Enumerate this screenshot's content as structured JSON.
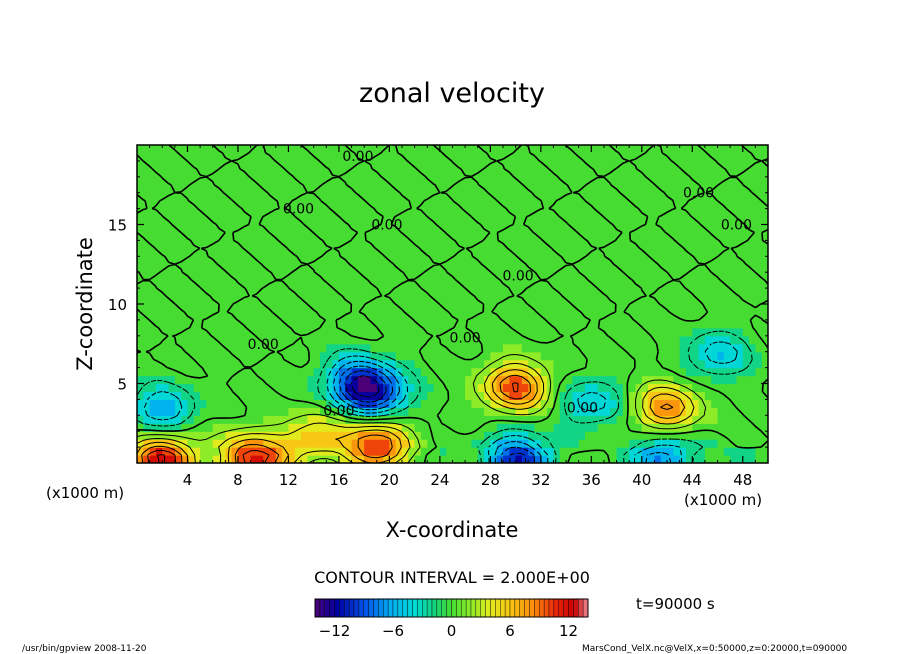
{
  "chart_data": {
    "type": "heatmap",
    "title": "zonal velocity",
    "xlabel": "X-coordinate",
    "ylabel": "Z-coordinate",
    "x_unit_label": "(x1000 m)",
    "x_unit_label_left": "(x1000 m)",
    "x_ticks": [
      4,
      8,
      12,
      16,
      20,
      24,
      28,
      32,
      36,
      40,
      44,
      48
    ],
    "y_ticks": [
      5,
      10,
      15
    ],
    "xlim": [
      0,
      50
    ],
    "ylim": [
      0,
      20
    ],
    "contour_interval_label": "CONTOUR INTERVAL = 2.000E+00",
    "contour_value_label": "0.00",
    "time_label": "t=90000 s",
    "colorbar": {
      "min": -14,
      "max": 14,
      "ticks": [
        -12,
        -6,
        0,
        6,
        12
      ]
    },
    "features": [
      {
        "x": 17.5,
        "z": 5.2,
        "value": -9.0
      },
      {
        "x": 19.0,
        "z": 4.3,
        "value": -8.0
      },
      {
        "x": 30.0,
        "z": 4.8,
        "value": 10.0
      },
      {
        "x": 19.0,
        "z": 1.2,
        "value": 10.0
      },
      {
        "x": 42.0,
        "z": 3.5,
        "value": 8.0
      },
      {
        "x": 2.0,
        "z": 0.3,
        "value": 11.0
      },
      {
        "x": 9.0,
        "z": 0.3,
        "value": 11.0
      },
      {
        "x": 30.0,
        "z": 0.3,
        "value": -10.0
      },
      {
        "x": 42.0,
        "z": 0.3,
        "value": -7.0
      },
      {
        "x": 2.0,
        "z": 3.4,
        "value": -6.0
      },
      {
        "x": 46.0,
        "z": 6.8,
        "value": -5.0
      },
      {
        "x": 36.0,
        "z": 3.8,
        "value": -5.0
      },
      {
        "x": 14.0,
        "z": 1.5,
        "value": 6.0
      }
    ],
    "contour_label_positions": [
      {
        "x": 17.5,
        "z": 19.3
      },
      {
        "x": 44.5,
        "z": 17.0
      },
      {
        "x": 12.8,
        "z": 16.0
      },
      {
        "x": 19.8,
        "z": 15.0
      },
      {
        "x": 47.5,
        "z": 15.0
      },
      {
        "x": 30.2,
        "z": 11.8
      },
      {
        "x": 10.0,
        "z": 7.5
      },
      {
        "x": 26.0,
        "z": 7.9
      },
      {
        "x": 16.0,
        "z": 3.3
      },
      {
        "x": 35.3,
        "z": 3.5
      }
    ]
  },
  "footer": {
    "left": "/usr/bin/gpview   2008-11-20",
    "right": "MarsCond_VelX.nc@VelX,x=0:50000,z=0:20000,t=090000"
  }
}
